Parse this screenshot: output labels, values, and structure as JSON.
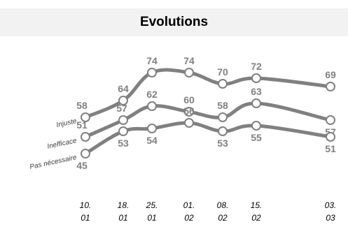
{
  "chart_data": {
    "type": "line",
    "title": "Evolutions",
    "categories": [
      [
        "10.",
        "01"
      ],
      [
        "18.",
        "01"
      ],
      [
        "25.",
        "01"
      ],
      [
        "01.",
        "02"
      ],
      [
        "08.",
        "02"
      ],
      [
        "15.",
        "02"
      ],
      [
        "03.",
        "03"
      ]
    ],
    "series": [
      {
        "name": "Injuste",
        "values": [
          58,
          64,
          74,
          74,
          70,
          72,
          69
        ]
      },
      {
        "name": "Inefficace",
        "values": [
          51,
          57,
          62,
          60,
          58,
          63,
          57
        ]
      },
      {
        "name": "Pas nécessaire",
        "values": [
          45,
          53,
          54,
          56,
          53,
          55,
          51
        ]
      }
    ],
    "line_color": "#808080",
    "label_color": "#808080",
    "grid": false,
    "legend": "none"
  }
}
